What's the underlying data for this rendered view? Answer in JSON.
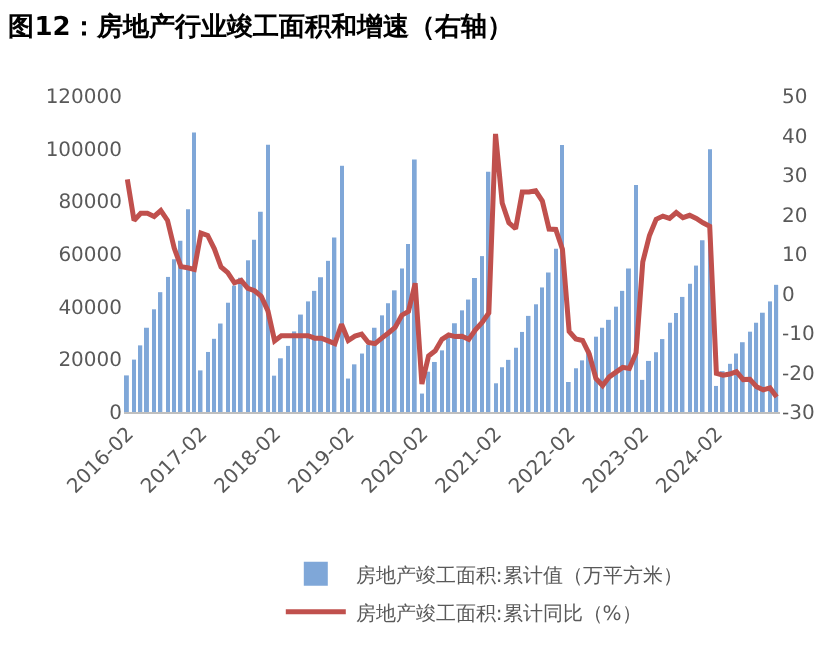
{
  "chart_data": {
    "type": "bar",
    "title": "图12：房地产行业竣工面积和增速（右轴）",
    "categories": [
      "2016-02",
      null,
      null,
      null,
      null,
      null,
      null,
      null,
      null,
      null,
      null,
      "2017-02",
      null,
      null,
      null,
      null,
      null,
      null,
      null,
      null,
      null,
      null,
      "2018-02",
      null,
      null,
      null,
      null,
      null,
      null,
      null,
      null,
      null,
      null,
      "2019-02",
      null,
      null,
      null,
      null,
      null,
      null,
      null,
      null,
      null,
      null,
      "2020-02",
      null,
      null,
      null,
      null,
      null,
      null,
      null,
      null,
      null,
      null,
      "2021-02",
      null,
      null,
      null,
      null,
      null,
      null,
      null,
      null,
      null,
      null,
      "2022-02",
      null,
      null,
      null,
      null,
      null,
      null,
      null,
      null,
      null,
      null,
      "2023-02",
      null,
      null,
      null,
      null,
      null,
      null,
      null,
      null,
      null,
      null,
      "2024-02",
      null,
      null,
      null,
      null,
      null,
      null,
      null,
      null,
      null
    ],
    "series": [
      {
        "name": "房地产竣工面积:累计值（万平方米）",
        "color": "#7fa7d8",
        "values": [
          13900,
          19900,
          25300,
          32000,
          39000,
          45500,
          51300,
          58000,
          65000,
          77000,
          106100,
          15800,
          22800,
          27800,
          33600,
          41500,
          48000,
          51000,
          57600,
          65400,
          76000,
          101500,
          13800,
          20400,
          25100,
          30600,
          37000,
          42000,
          46000,
          51200,
          57400,
          66300,
          93500,
          12700,
          18100,
          22200,
          25500,
          32000,
          36700,
          41300,
          46200,
          54500,
          63800,
          95900,
          7000,
          15300,
          19000,
          23400,
          29000,
          33700,
          38600,
          42700,
          50900,
          59200,
          91200,
          10900,
          17000,
          19800,
          24400,
          30400,
          36500,
          40900,
          47300,
          53000,
          62000,
          101400,
          11400,
          16600,
          19600,
          23400,
          28600,
          32000,
          35000,
          40000,
          46000,
          54500,
          86200,
          12200,
          19400,
          22700,
          27700,
          33900,
          37600,
          43700,
          48700,
          55600,
          65200,
          99800,
          9900,
          15500,
          18300,
          22200,
          26500,
          30500,
          33900,
          37700,
          42000,
          48300
        ]
      },
      {
        "name": "房地产竣工面积:累计同比（%）",
        "type": "line",
        "axis": "y2",
        "color": "#c0504d",
        "values": [
          28.9,
          18.5,
          20.3,
          20.3,
          19.5,
          21.0,
          18.5,
          11.5,
          6.8,
          6.5,
          6.1,
          15.3,
          14.7,
          11.3,
          6.7,
          5.3,
          2.7,
          3.3,
          1.3,
          0.7,
          -0.7,
          -4.4,
          -12.0,
          -10.7,
          -10.7,
          -10.7,
          -10.7,
          -10.7,
          -11.3,
          -11.3,
          -12.0,
          -12.7,
          -7.8,
          -11.9,
          -10.8,
          -10.3,
          -12.4,
          -12.7,
          -11.3,
          -10.0,
          -8.6,
          -5.5,
          -4.5,
          2.6,
          -22.9,
          -15.8,
          -14.5,
          -11.6,
          -10.5,
          -10.9,
          -10.8,
          -11.6,
          -9.2,
          -7.3,
          -4.9,
          40.4,
          22.9,
          17.9,
          16.4,
          25.7,
          25.7,
          26.0,
          23.4,
          16.3,
          16.2,
          11.2,
          -9.6,
          -11.5,
          -11.9,
          -15.3,
          -21.5,
          -23.3,
          -21.1,
          -19.9,
          -18.7,
          -19.0,
          -15.0,
          8.0,
          14.7,
          18.8,
          19.6,
          19.0,
          20.5,
          19.2,
          19.8,
          19.0,
          17.9,
          17.0,
          -20.2,
          -20.7,
          -20.4,
          -19.8,
          -21.8,
          -21.7,
          -23.6,
          -24.4,
          -23.9,
          -26.2
        ]
      }
    ],
    "ylim": [
      0,
      120000
    ],
    "yticks": [
      0,
      20000,
      40000,
      60000,
      80000,
      100000,
      120000
    ],
    "y2lim": [
      -30,
      50
    ],
    "y2ticks": [
      -30,
      -20,
      -10,
      0,
      10,
      20,
      30,
      40,
      50
    ],
    "legend": "bottom",
    "marker": "none",
    "line_style": "solid"
  }
}
